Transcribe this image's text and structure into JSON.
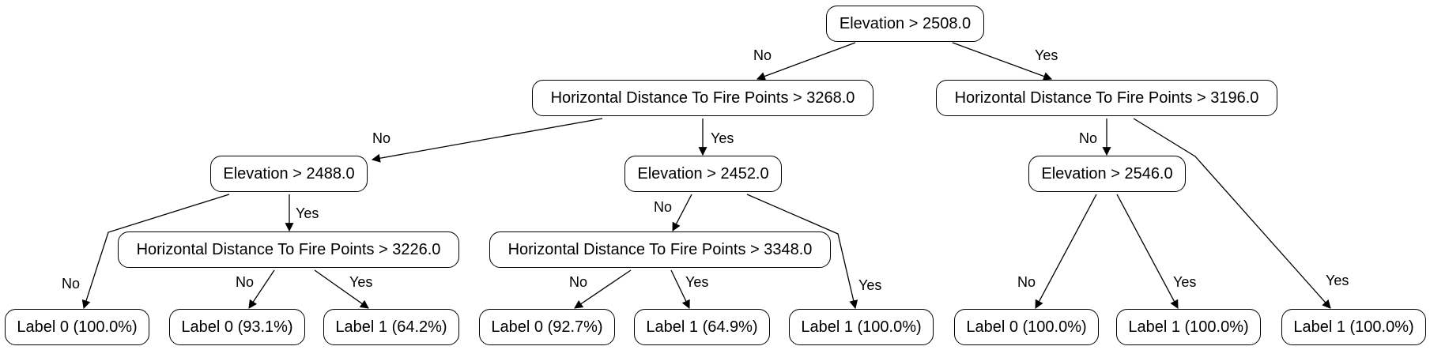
{
  "nodes": {
    "root": "Elevation > 2508.0",
    "n_left": "Horizontal Distance To Fire Points > 3268.0",
    "n_right": "Horizontal Distance To Fire Points > 3196.0",
    "n_ll": "Elevation > 2488.0",
    "n_lr": "Elevation > 2452.0",
    "n_rl": "Elevation > 2546.0",
    "n_llr": "Horizontal Distance To Fire Points > 3226.0",
    "n_lrl": "Horizontal Distance To Fire Points > 3348.0",
    "leaf_1": "Label 0 (100.0%)",
    "leaf_2": "Label 0 (93.1%)",
    "leaf_3": "Label 1 (64.2%)",
    "leaf_4": "Label 0 (92.7%)",
    "leaf_5": "Label 1 (64.9%)",
    "leaf_6": "Label 1 (100.0%)",
    "leaf_7": "Label 0 (100.0%)",
    "leaf_8": "Label 1 (100.0%)",
    "leaf_9": "Label 1 (100.0%)"
  },
  "edge_labels": {
    "no": "No",
    "yes": "Yes"
  }
}
